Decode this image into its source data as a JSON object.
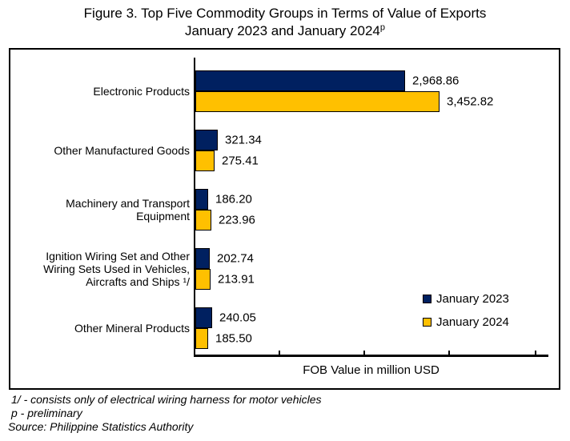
{
  "title": {
    "line1": "Figure 3. Top Five Commodity Groups in Terms of Value of Exports",
    "line2": "January 2023 and January 2024",
    "superscript": "p"
  },
  "chart_data": {
    "type": "bar",
    "orientation": "horizontal",
    "categories": [
      "Electronic Products",
      "Other Manufactured Goods",
      "Machinery and Transport Equipment",
      "Ignition Wiring Set and Other Wiring Sets Used in Vehicles, Aircrafts and Ships ¹/",
      "Other Mineral Products"
    ],
    "series": [
      {
        "name": "January 2023",
        "color": "#002060",
        "values": [
          2968.86,
          321.34,
          186.2,
          202.74,
          240.05
        ],
        "labels": [
          "2,968.86",
          "321.34",
          "186.20",
          "202.74",
          "240.05"
        ]
      },
      {
        "name": "January 2024",
        "color": "#FFC000",
        "values": [
          3452.82,
          275.41,
          223.96,
          213.91,
          185.5
        ],
        "labels": [
          "3,452.82",
          "275.41",
          "223.96",
          "213.91",
          "185.50"
        ]
      }
    ],
    "xlabel": "FOB Value in million USD",
    "xlim": [
      0,
      5000
    ],
    "x_ticks_labeled": false,
    "grid": false,
    "legend_position": "inside-right-lower",
    "bar_border_color": "#000000",
    "axis_color": "#000000"
  },
  "footnotes": [
    "1/ - consists only of electrical wiring harness for motor vehicles",
    "p - preliminary",
    "Source: Philippine Statistics Authority"
  ]
}
